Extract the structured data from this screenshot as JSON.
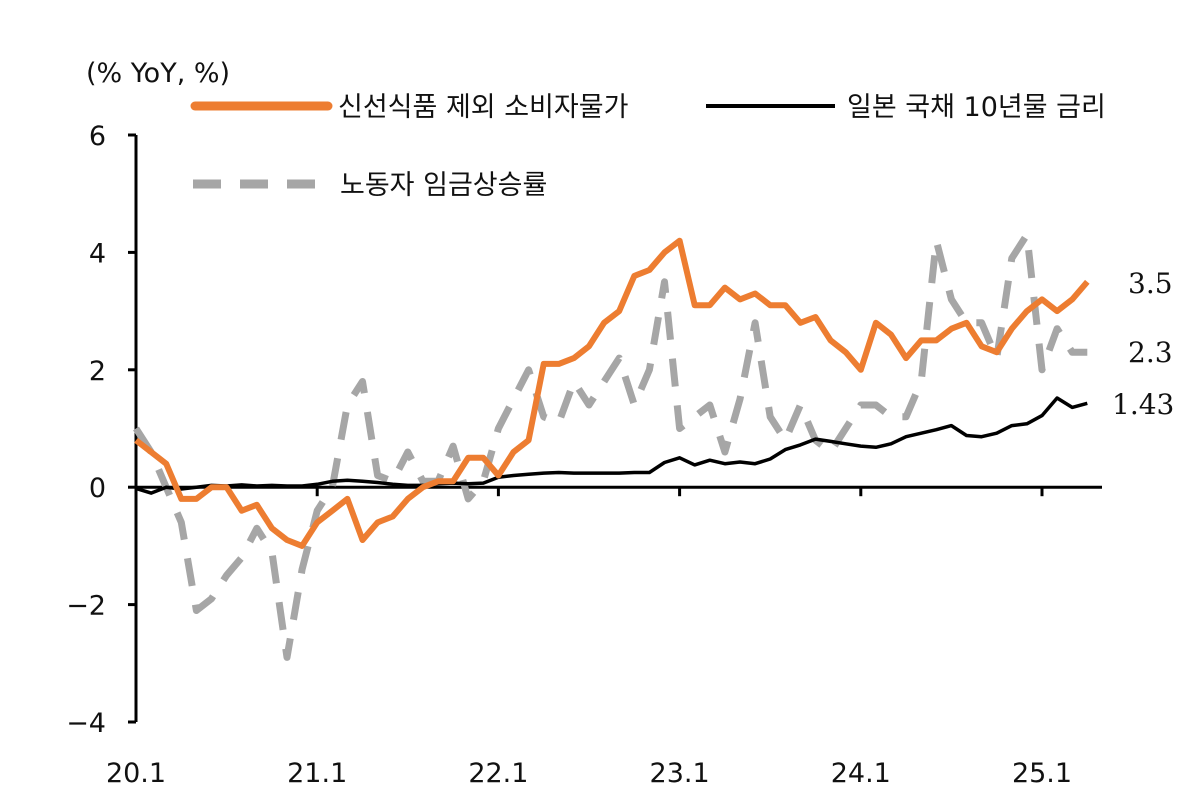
{
  "chart_data": {
    "type": "line",
    "unit_label": "(% YoY, %)",
    "ylim": [
      -4,
      6
    ],
    "y_ticks": [
      -4,
      -2,
      0,
      2,
      4,
      6
    ],
    "x_tick_labels": [
      "20.1",
      "21.1",
      "22.1",
      "23.1",
      "24.1",
      "25.1"
    ],
    "x_tick_months": [
      0,
      12,
      24,
      36,
      48,
      60
    ],
    "legend": {
      "core_cpi": "신선식품 제외 소비자물가",
      "jgb_10y": "일본 국채 10년물 금리",
      "wage": "노동자 임금상승률"
    },
    "series": [
      {
        "name": "신선식품 제외 소비자물가",
        "key": "core_cpi",
        "color": "#ED7D31",
        "style": "solid",
        "end_label": "3.5",
        "values": [
          0.8,
          0.6,
          0.4,
          -0.2,
          -0.2,
          0.0,
          0.0,
          -0.4,
          -0.3,
          -0.7,
          -0.9,
          -1.0,
          -0.6,
          -0.4,
          -0.2,
          -0.9,
          -0.6,
          -0.5,
          -0.2,
          0.0,
          0.1,
          0.1,
          0.5,
          0.5,
          0.2,
          0.6,
          0.8,
          2.1,
          2.1,
          2.2,
          2.4,
          2.8,
          3.0,
          3.6,
          3.7,
          4.0,
          4.2,
          3.1,
          3.1,
          3.4,
          3.2,
          3.3,
          3.1,
          3.1,
          2.8,
          2.9,
          2.5,
          2.3,
          2.0,
          2.8,
          2.6,
          2.2,
          2.5,
          2.5,
          2.7,
          2.8,
          2.4,
          2.3,
          2.7,
          3.0,
          3.2,
          3.0,
          3.2,
          3.5
        ]
      },
      {
        "name": "일본 국채 10년물 금리",
        "key": "jgb_10y",
        "color": "#000000",
        "style": "solid",
        "end_label": "1.43",
        "values": [
          -0.02,
          -0.1,
          0.0,
          -0.03,
          0.0,
          0.03,
          0.02,
          0.04,
          0.02,
          0.03,
          0.02,
          0.02,
          0.05,
          0.1,
          0.12,
          0.1,
          0.08,
          0.05,
          0.03,
          0.03,
          0.06,
          0.07,
          0.06,
          0.07,
          0.17,
          0.2,
          0.22,
          0.24,
          0.25,
          0.24,
          0.24,
          0.24,
          0.24,
          0.25,
          0.25,
          0.42,
          0.5,
          0.38,
          0.46,
          0.4,
          0.43,
          0.4,
          0.48,
          0.64,
          0.72,
          0.82,
          0.78,
          0.74,
          0.7,
          0.68,
          0.74,
          0.86,
          0.92,
          0.98,
          1.05,
          0.88,
          0.86,
          0.92,
          1.05,
          1.08,
          1.22,
          1.52,
          1.36,
          1.43
        ]
      },
      {
        "name": "노동자 임금상승률",
        "key": "wage",
        "color": "#A6A6A6",
        "style": "dashed",
        "end_label": "2.3",
        "values": [
          1.0,
          0.6,
          0.0,
          -0.6,
          -2.1,
          -1.9,
          -1.5,
          -1.2,
          -0.7,
          -1.1,
          -2.9,
          -1.4,
          -0.4,
          0.0,
          1.4,
          1.8,
          0.2,
          0.1,
          0.6,
          0.1,
          0.1,
          0.7,
          -0.2,
          0.1,
          1.0,
          1.5,
          2.0,
          1.2,
          1.1,
          1.8,
          1.4,
          1.8,
          2.2,
          1.4,
          2.0,
          3.5,
          1.0,
          1.2,
          1.4,
          0.6,
          1.5,
          2.8,
          1.2,
          0.8,
          1.4,
          0.8,
          0.6,
          1.0,
          1.4,
          1.4,
          1.2,
          1.2,
          1.8,
          4.2,
          3.2,
          2.8,
          2.8,
          2.2,
          3.9,
          4.3,
          2.0,
          2.7,
          2.3,
          2.3
        ]
      }
    ]
  }
}
